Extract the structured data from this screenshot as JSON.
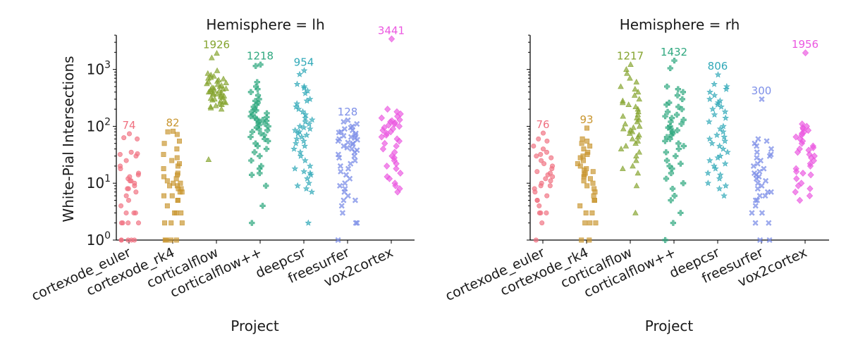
{
  "chart_data": [
    {
      "type": "scatter",
      "title": "Hemisphere = lh",
      "xlabel": "Project",
      "ylabel": "White-Pial Intersections",
      "yscale": "log",
      "ylim": [
        1,
        4000
      ],
      "ytick_labels": [
        "10^0",
        "10^1",
        "10^2",
        "10^3"
      ],
      "categories": [
        "cortexode_euler",
        "cortexode_rk4",
        "corticalflow",
        "corticalflow++",
        "deepcsr",
        "freesurfer",
        "vox2cortex"
      ],
      "colors": [
        "#f07080",
        "#c8952e",
        "#84a32e",
        "#2fa87f",
        "#31a9b8",
        "#7d8fe8",
        "#eb57e0"
      ],
      "markers": [
        "circle",
        "square",
        "triangle",
        "plus",
        "star",
        "x",
        "diamond"
      ],
      "max_labels": [
        "74",
        "82",
        "1926",
        "1218",
        "954",
        "128",
        "3441"
      ],
      "series": [
        {
          "name": "cortexode_euler",
          "values": [
            74,
            63,
            60,
            35,
            33,
            32,
            30,
            25,
            20,
            18,
            15,
            14,
            13,
            12,
            11,
            11,
            10,
            9,
            8,
            8,
            7,
            6,
            5,
            4,
            3,
            3,
            3,
            2,
            2,
            2,
            2,
            1,
            1,
            1,
            1,
            1
          ]
        },
        {
          "name": "cortexode_rk4",
          "values": [
            82,
            80,
            72,
            55,
            50,
            40,
            32,
            28,
            25,
            22,
            20,
            18,
            15,
            14,
            13,
            12,
            11,
            10,
            10,
            9,
            9,
            8,
            8,
            7,
            7,
            6,
            6,
            5,
            5,
            4,
            3,
            3,
            3,
            2,
            2,
            2,
            1,
            1,
            1,
            1
          ]
        },
        {
          "name": "corticalflow",
          "values": [
            1926,
            1600,
            950,
            850,
            800,
            760,
            720,
            700,
            680,
            650,
            620,
            600,
            580,
            560,
            540,
            520,
            500,
            480,
            470,
            460,
            450,
            440,
            430,
            420,
            410,
            400,
            390,
            380,
            370,
            360,
            350,
            340,
            330,
            320,
            310,
            300,
            290,
            280,
            270,
            260,
            250,
            240,
            230,
            220,
            210,
            200,
            26
          ]
        },
        {
          "name": "corticalflow++",
          "values": [
            1218,
            1150,
            600,
            500,
            450,
            400,
            350,
            300,
            280,
            260,
            240,
            220,
            200,
            190,
            180,
            170,
            160,
            150,
            145,
            140,
            135,
            130,
            125,
            120,
            115,
            110,
            105,
            100,
            95,
            90,
            85,
            80,
            75,
            70,
            65,
            60,
            55,
            50,
            45,
            40,
            35,
            30,
            25,
            20,
            18,
            15,
            14,
            9,
            4,
            2
          ]
        },
        {
          "name": "deepcsr",
          "values": [
            954,
            820,
            550,
            500,
            470,
            420,
            380,
            300,
            280,
            250,
            220,
            200,
            180,
            160,
            140,
            130,
            120,
            110,
            100,
            95,
            90,
            85,
            80,
            75,
            70,
            65,
            60,
            55,
            50,
            45,
            40,
            35,
            30,
            25,
            20,
            18,
            16,
            15,
            14,
            12,
            10,
            9,
            8,
            7,
            2
          ]
        },
        {
          "name": "freesurfer",
          "values": [
            128,
            120,
            110,
            100,
            95,
            90,
            85,
            80,
            78,
            75,
            70,
            68,
            65,
            62,
            60,
            58,
            55,
            52,
            50,
            48,
            45,
            42,
            40,
            38,
            35,
            32,
            30,
            28,
            25,
            22,
            20,
            18,
            16,
            14,
            12,
            10,
            9,
            8,
            7,
            6,
            5,
            5,
            4,
            3,
            2,
            2,
            1
          ]
        },
        {
          "name": "vox2cortex",
          "values": [
            3441,
            200,
            180,
            165,
            150,
            140,
            130,
            125,
            120,
            115,
            110,
            105,
            100,
            95,
            90,
            85,
            80,
            75,
            70,
            65,
            60,
            55,
            50,
            45,
            40,
            35,
            30,
            28,
            25,
            22,
            20,
            18,
            15,
            13,
            12,
            10,
            9,
            8,
            7
          ]
        }
      ]
    },
    {
      "type": "scatter",
      "title": "Hemisphere = rh",
      "xlabel": "Project",
      "ylabel": "",
      "yscale": "log",
      "ylim": [
        1,
        4000
      ],
      "categories": [
        "cortexode_euler",
        "cortexode_rk4",
        "corticalflow",
        "corticalflow++",
        "deepcsr",
        "freesurfer",
        "vox2cortex"
      ],
      "colors": [
        "#f07080",
        "#c8952e",
        "#84a32e",
        "#2fa87f",
        "#31a9b8",
        "#7d8fe8",
        "#eb57e0"
      ],
      "markers": [
        "circle",
        "square",
        "triangle",
        "plus",
        "star",
        "x",
        "diamond"
      ],
      "max_labels": [
        "76",
        "93",
        "1217",
        "1432",
        "806",
        "300",
        "1956"
      ],
      "series": [
        {
          "name": "cortexode_euler",
          "values": [
            76,
            60,
            55,
            45,
            40,
            35,
            32,
            30,
            28,
            25,
            22,
            20,
            18,
            16,
            15,
            14,
            13,
            12,
            11,
            10,
            9,
            9,
            8,
            7,
            6,
            5,
            5,
            4,
            3,
            3,
            3,
            2,
            1
          ]
        },
        {
          "name": "cortexode_rk4",
          "values": [
            93,
            60,
            55,
            50,
            45,
            40,
            35,
            32,
            30,
            28,
            25,
            22,
            20,
            18,
            17,
            16,
            15,
            14,
            13,
            12,
            11,
            10,
            9,
            8,
            7,
            6,
            5,
            5,
            4,
            3,
            3,
            2,
            2,
            2,
            1,
            1
          ]
        },
        {
          "name": "corticalflow",
          "values": [
            1217,
            1000,
            850,
            700,
            600,
            500,
            450,
            400,
            350,
            300,
            280,
            260,
            240,
            220,
            200,
            180,
            160,
            150,
            140,
            130,
            120,
            110,
            100,
            95,
            90,
            85,
            80,
            75,
            70,
            65,
            60,
            55,
            50,
            45,
            40,
            35,
            30,
            25,
            20,
            18,
            15,
            9,
            3
          ]
        },
        {
          "name": "corticalflow++",
          "values": [
            1432,
            1050,
            500,
            450,
            400,
            350,
            300,
            260,
            240,
            220,
            200,
            180,
            160,
            150,
            140,
            130,
            120,
            110,
            100,
            95,
            90,
            85,
            80,
            75,
            70,
            65,
            60,
            55,
            50,
            45,
            40,
            35,
            30,
            25,
            22,
            20,
            18,
            15,
            12,
            10,
            8,
            6,
            5,
            3,
            2,
            1
          ]
        },
        {
          "name": "deepcsr",
          "values": [
            806,
            550,
            500,
            450,
            400,
            350,
            300,
            280,
            260,
            240,
            220,
            200,
            180,
            160,
            140,
            120,
            100,
            90,
            80,
            70,
            65,
            60,
            55,
            50,
            45,
            40,
            35,
            30,
            28,
            25,
            22,
            20,
            18,
            15,
            14,
            12,
            10,
            9,
            8,
            6
          ]
        },
        {
          "name": "freesurfer",
          "values": [
            300,
            60,
            55,
            50,
            45,
            40,
            35,
            32,
            30,
            28,
            25,
            22,
            20,
            18,
            16,
            15,
            14,
            13,
            12,
            11,
            10,
            9,
            8,
            7,
            7,
            6,
            6,
            5,
            5,
            4,
            3,
            3,
            2,
            2,
            1,
            1
          ]
        },
        {
          "name": "vox2cortex",
          "values": [
            1956,
            110,
            100,
            95,
            90,
            85,
            80,
            75,
            70,
            65,
            60,
            55,
            50,
            45,
            42,
            40,
            38,
            35,
            32,
            30,
            28,
            25,
            22,
            20,
            18,
            16,
            15,
            14,
            12,
            10,
            9,
            8,
            7,
            6,
            5
          ]
        }
      ]
    }
  ]
}
